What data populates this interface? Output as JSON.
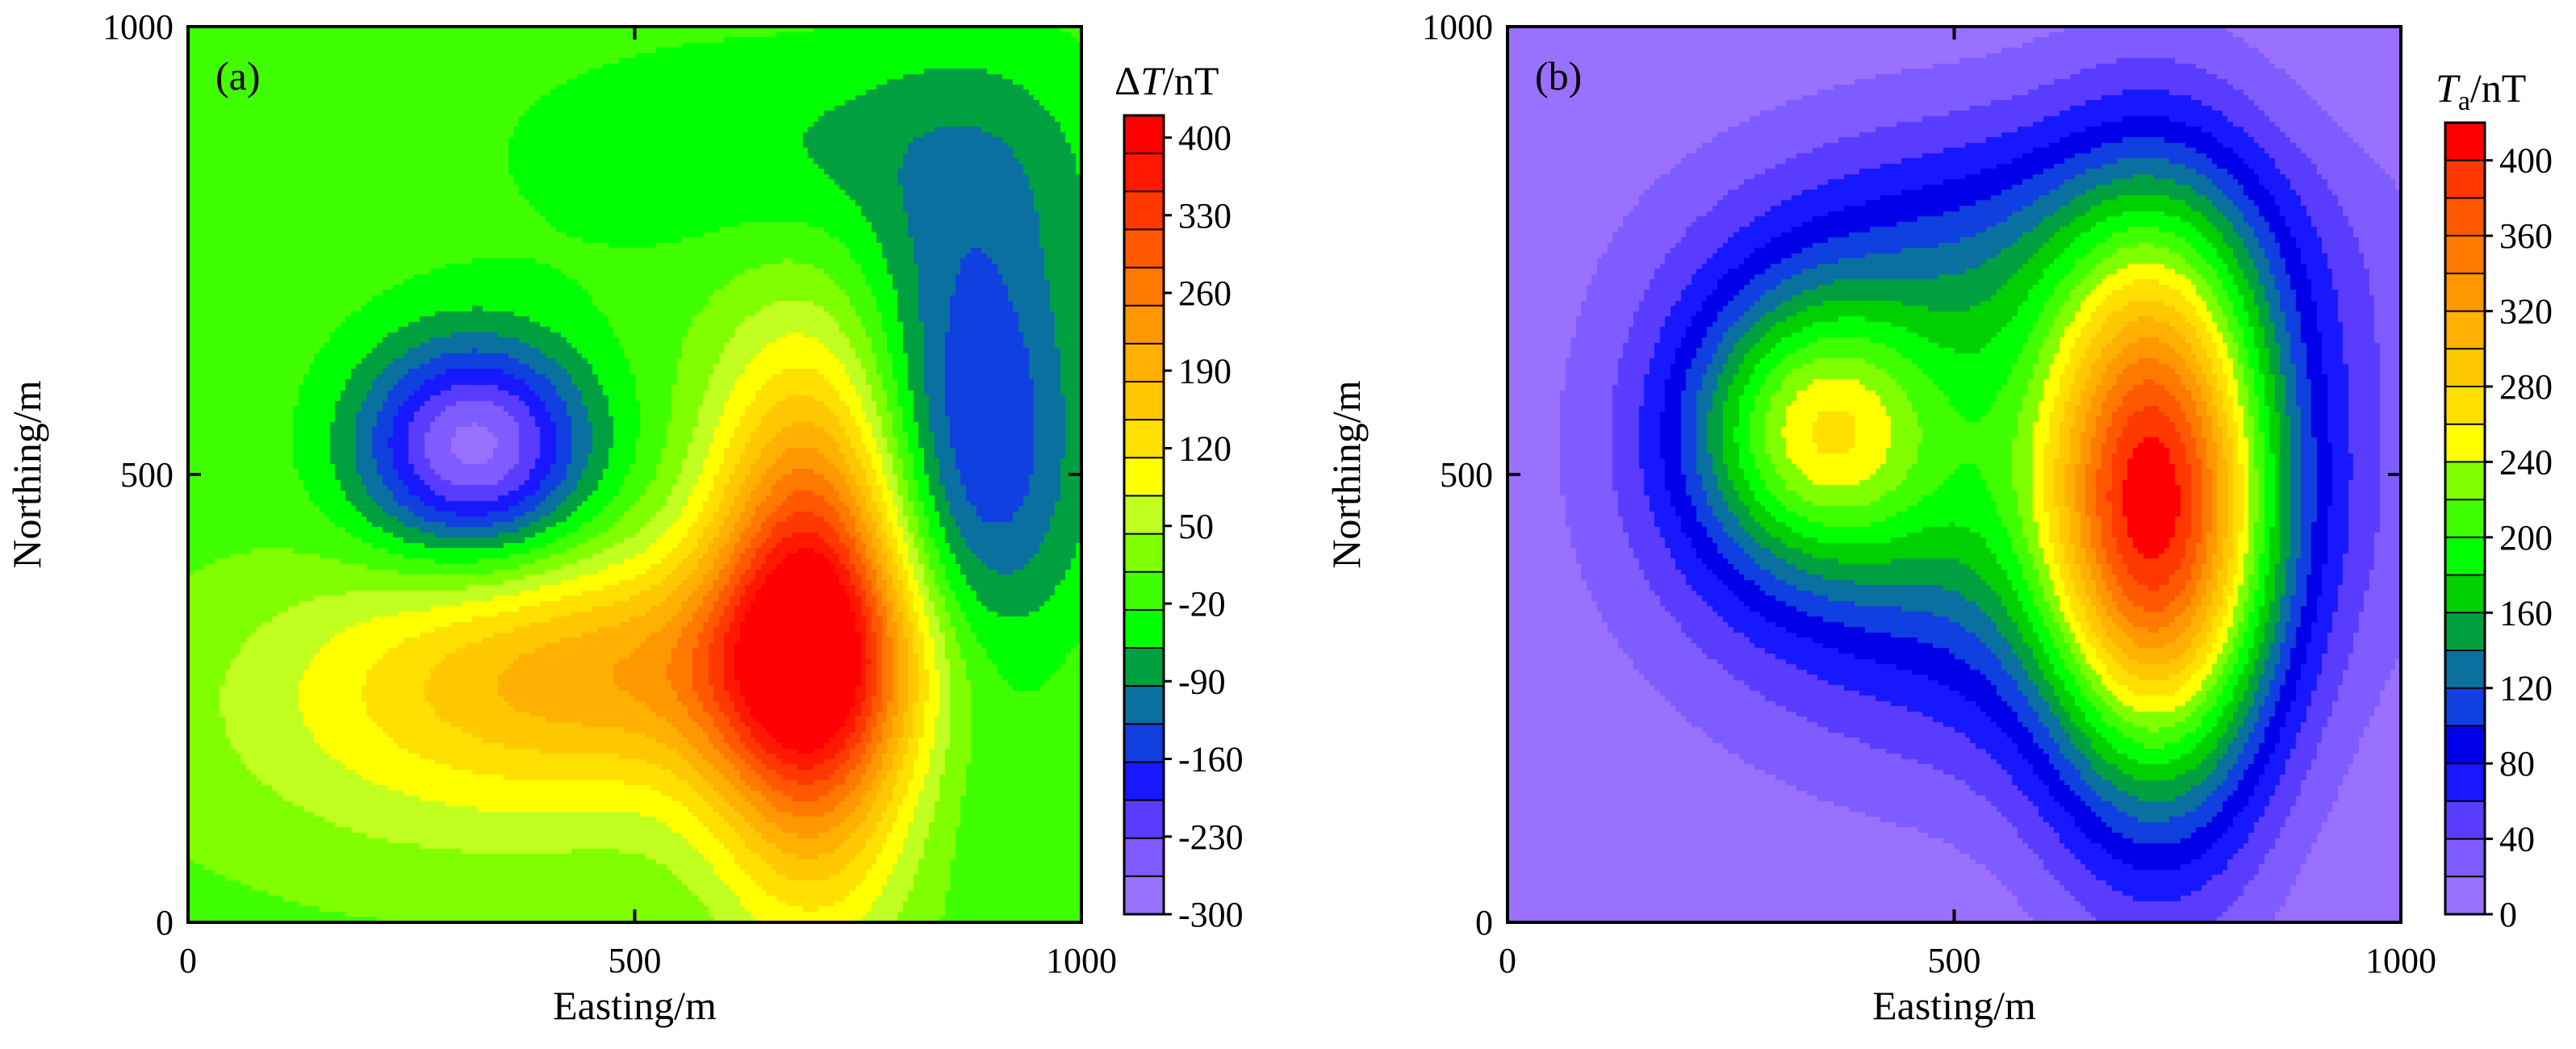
{
  "chart_data": [
    {
      "type": "heatmap",
      "style": "filled-contour",
      "panel_label": "(a)",
      "xlabel": "Easting/m",
      "ylabel": "Northing/m",
      "xlim": [
        0,
        1000
      ],
      "ylim": [
        0,
        1000
      ],
      "x_ticks": [
        "0",
        "500",
        "1000"
      ],
      "y_ticks": [
        "0",
        "500",
        "1000"
      ],
      "colorbar": {
        "title_prefix": "Δ",
        "title_var": "T",
        "title_sub": "",
        "title_unit": "/nT",
        "min": -300,
        "max": 420,
        "step": 35,
        "tick_values": [
          400,
          330,
          260,
          190,
          120,
          50,
          -20,
          -90,
          -160,
          -230,
          -300
        ],
        "tick_labels": [
          "400",
          "330",
          "260",
          "190",
          "120",
          "50",
          "-20",
          "-90",
          "-160",
          "-230",
          "-300"
        ],
        "colors": [
          "#9a70ff",
          "#7f5cff",
          "#5a3cff",
          "#1818ff",
          "#1040e0",
          "#0a70a0",
          "#00a040",
          "#00ff00",
          "#40ff00",
          "#80ff00",
          "#c0ff20",
          "#ffff00",
          "#ffe000",
          "#ffc800",
          "#ffb000",
          "#ff9800",
          "#ff7800",
          "#ff5800",
          "#ff3800",
          "#ff1800",
          "#ff0000"
        ]
      },
      "field_components": [
        {
          "kind": "positive ridge",
          "x": 700,
          "y": 330,
          "sx": 80,
          "sy": 200,
          "amplitude": 400
        },
        {
          "kind": "positive lobe",
          "x": 510,
          "y": 290,
          "sx": 240,
          "sy": 90,
          "amplitude": 180
        },
        {
          "kind": "positive lobe",
          "x": 330,
          "y": 190,
          "sx": 230,
          "sy": 110,
          "amplitude": 70
        },
        {
          "kind": "negative low",
          "x": 320,
          "y": 530,
          "sx": 90,
          "sy": 85,
          "amplitude": -280
        },
        {
          "kind": "negative ridge",
          "x": 880,
          "y": 540,
          "sx": 90,
          "sy": 220,
          "amplitude": -170
        },
        {
          "kind": "negative lobe",
          "x": 700,
          "y": 860,
          "sx": 230,
          "sy": 90,
          "amplitude": -60
        }
      ]
    },
    {
      "type": "heatmap",
      "style": "filled-contour",
      "panel_label": "(b)",
      "xlabel": "Easting/m",
      "ylabel": "Northing/m",
      "xlim": [
        0,
        1000
      ],
      "ylim": [
        0,
        1000
      ],
      "x_ticks": [
        "0",
        "500",
        "1000"
      ],
      "y_ticks": [
        "0",
        "500",
        "1000"
      ],
      "colorbar": {
        "title_prefix": "",
        "title_var": "T",
        "title_sub": "a",
        "title_unit": "/nT",
        "min": 0,
        "max": 420,
        "step": 20,
        "tick_values": [
          400,
          360,
          320,
          280,
          240,
          200,
          160,
          120,
          80,
          40,
          0
        ],
        "tick_labels": [
          "400",
          "360",
          "320",
          "280",
          "240",
          "200",
          "160",
          "120",
          "80",
          "40",
          "0"
        ],
        "colors": [
          "#9a70ff",
          "#7f5cff",
          "#5a3cff",
          "#1818ff",
          "#0000e8",
          "#1040e0",
          "#0a70a0",
          "#00a040",
          "#00d000",
          "#00ff00",
          "#40ff00",
          "#80ff00",
          "#ffff00",
          "#ffe000",
          "#ffc800",
          "#ffb000",
          "#ff9800",
          "#ff7800",
          "#ff5800",
          "#ff3800",
          "#ff0000"
        ]
      },
      "field_components": [
        {
          "kind": "main high",
          "x": 730,
          "y": 450,
          "sx": 90,
          "sy": 230,
          "amplitude": 300
        },
        {
          "kind": "secondary high",
          "x": 340,
          "y": 550,
          "sx": 100,
          "sy": 110,
          "amplitude": 160
        },
        {
          "kind": "broad plateau",
          "x": 560,
          "y": 500,
          "sx": 240,
          "sy": 200,
          "amplitude": 150
        },
        {
          "kind": "northeast extension",
          "x": 600,
          "y": 760,
          "sx": 240,
          "sy": 110,
          "amplitude": 50
        }
      ]
    }
  ]
}
